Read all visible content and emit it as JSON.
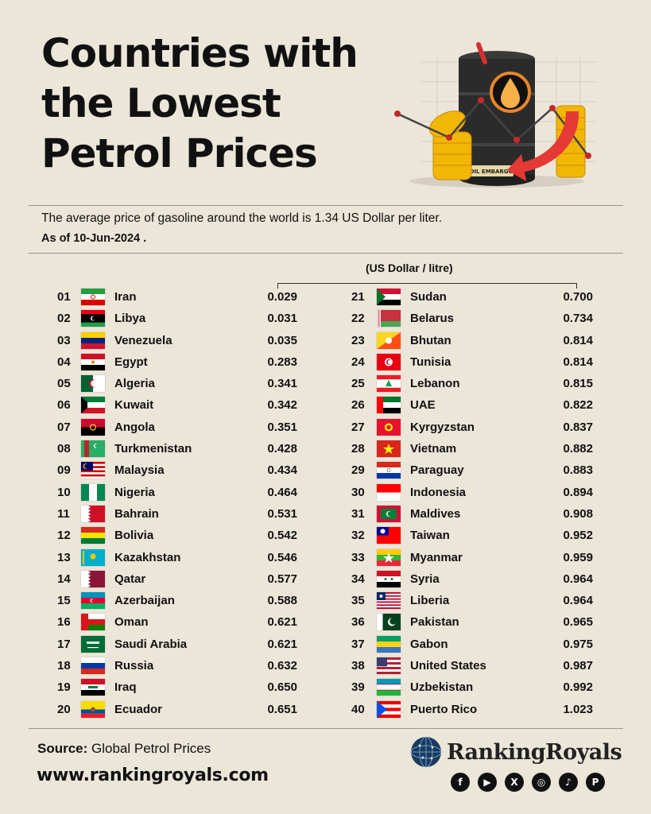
{
  "title_lines": [
    "Countries with",
    "the Lowest",
    "Petrol Prices"
  ],
  "subtitle": "The average price of gasoline around the world is 1.34 US Dollar per liter.",
  "as_of": "As of 10-Jun-2024 .",
  "unit_label": "(US Dollar / litre)",
  "hero_label": "OIL EMBARGO",
  "footer": {
    "source_label": "Source:",
    "source_value": " Global Petrol Prices",
    "website": "www.rankingroyals.com",
    "brand": "RankingRoyals",
    "social_icons": [
      "facebook-icon",
      "youtube-icon",
      "x-icon",
      "instagram-icon",
      "tiktok-icon",
      "pinterest-icon"
    ]
  },
  "chart_data": {
    "type": "table",
    "title": "Countries with the Lowest Petrol Prices",
    "unit": "(US Dollar / litre)",
    "rows": [
      {
        "rank": "01",
        "country": "Iran",
        "flag": "iran",
        "price": "0.029"
      },
      {
        "rank": "02",
        "country": "Libya",
        "flag": "libya",
        "price": "0.031"
      },
      {
        "rank": "03",
        "country": "Venezuela",
        "flag": "venezuela",
        "price": "0.035"
      },
      {
        "rank": "04",
        "country": "Egypt",
        "flag": "egypt",
        "price": "0.283"
      },
      {
        "rank": "05",
        "country": "Algeria",
        "flag": "algeria",
        "price": "0.341"
      },
      {
        "rank": "06",
        "country": "Kuwait",
        "flag": "kuwait",
        "price": "0.342"
      },
      {
        "rank": "07",
        "country": "Angola",
        "flag": "angola",
        "price": "0.351"
      },
      {
        "rank": "08",
        "country": "Turkmenistan",
        "flag": "turkmenistan",
        "price": "0.428"
      },
      {
        "rank": "09",
        "country": "Malaysia",
        "flag": "malaysia",
        "price": "0.434"
      },
      {
        "rank": "10",
        "country": "Nigeria",
        "flag": "nigeria",
        "price": "0.464"
      },
      {
        "rank": "11",
        "country": "Bahrain",
        "flag": "bahrain",
        "price": "0.531"
      },
      {
        "rank": "12",
        "country": "Bolivia",
        "flag": "bolivia",
        "price": "0.542"
      },
      {
        "rank": "13",
        "country": "Kazakhstan",
        "flag": "kazakhstan",
        "price": "0.546"
      },
      {
        "rank": "14",
        "country": "Qatar",
        "flag": "qatar",
        "price": "0.577"
      },
      {
        "rank": "15",
        "country": "Azerbaijan",
        "flag": "azerbaijan",
        "price": "0.588"
      },
      {
        "rank": "16",
        "country": "Oman",
        "flag": "oman",
        "price": "0.621"
      },
      {
        "rank": "17",
        "country": "Saudi Arabia",
        "flag": "saudi-arabia",
        "price": "0.621"
      },
      {
        "rank": "18",
        "country": "Russia",
        "flag": "russia",
        "price": "0.632"
      },
      {
        "rank": "19",
        "country": "Iraq",
        "flag": "iraq",
        "price": "0.650"
      },
      {
        "rank": "20",
        "country": "Ecuador",
        "flag": "ecuador",
        "price": "0.651"
      },
      {
        "rank": "21",
        "country": "Sudan",
        "flag": "sudan",
        "price": "0.700"
      },
      {
        "rank": "22",
        "country": "Belarus",
        "flag": "belarus",
        "price": "0.734"
      },
      {
        "rank": "23",
        "country": "Bhutan",
        "flag": "bhutan",
        "price": "0.814"
      },
      {
        "rank": "24",
        "country": "Tunisia",
        "flag": "tunisia",
        "price": "0.814"
      },
      {
        "rank": "25",
        "country": "Lebanon",
        "flag": "lebanon",
        "price": "0.815"
      },
      {
        "rank": "26",
        "country": "UAE",
        "flag": "uae",
        "price": "0.822"
      },
      {
        "rank": "27",
        "country": "Kyrgyzstan",
        "flag": "kyrgyzstan",
        "price": "0.837"
      },
      {
        "rank": "28",
        "country": "Vietnam",
        "flag": "vietnam",
        "price": "0.882"
      },
      {
        "rank": "29",
        "country": "Paraguay",
        "flag": "paraguay",
        "price": "0.883"
      },
      {
        "rank": "30",
        "country": "Indonesia",
        "flag": "indonesia",
        "price": "0.894"
      },
      {
        "rank": "31",
        "country": "Maldives",
        "flag": "maldives",
        "price": "0.908"
      },
      {
        "rank": "32",
        "country": "Taiwan",
        "flag": "taiwan",
        "price": "0.952"
      },
      {
        "rank": "33",
        "country": "Myanmar",
        "flag": "myanmar",
        "price": "0.959"
      },
      {
        "rank": "34",
        "country": "Syria",
        "flag": "syria",
        "price": "0.964"
      },
      {
        "rank": "35",
        "country": "Liberia",
        "flag": "liberia",
        "price": "0.964"
      },
      {
        "rank": "36",
        "country": "Pakistan",
        "flag": "pakistan",
        "price": "0.965"
      },
      {
        "rank": "37",
        "country": "Gabon",
        "flag": "gabon",
        "price": "0.975"
      },
      {
        "rank": "38",
        "country": "United States",
        "flag": "united-states",
        "price": "0.987"
      },
      {
        "rank": "39",
        "country": "Uzbekistan",
        "flag": "uzbekistan",
        "price": "0.992"
      },
      {
        "rank": "40",
        "country": "Puerto Rico",
        "flag": "puerto-rico",
        "price": "1.023"
      }
    ]
  }
}
